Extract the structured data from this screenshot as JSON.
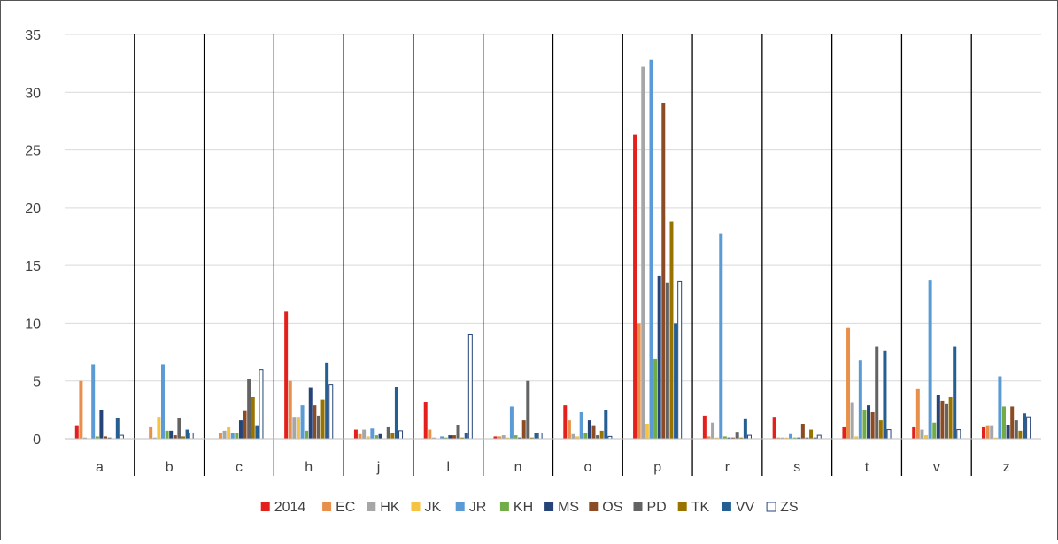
{
  "chart_data": {
    "type": "bar",
    "title": "",
    "xlabel": "",
    "ylabel": "",
    "ylim": [
      0,
      35
    ],
    "yticks": [
      0,
      5,
      10,
      15,
      20,
      25,
      30,
      35
    ],
    "grid": "horizontal",
    "category_separators": true,
    "legend_position": "bottom",
    "categories": [
      "a",
      "b",
      "c",
      "h",
      "j",
      "l",
      "n",
      "o",
      "p",
      "r",
      "s",
      "t",
      "v",
      "z"
    ],
    "series": [
      {
        "name": "2014",
        "color": "#e3201c",
        "values": [
          1.1,
          0.0,
          0.0,
          11.0,
          0.8,
          3.2,
          0.2,
          2.9,
          26.3,
          2.0,
          1.9,
          1.0,
          1.0,
          1.0
        ]
      },
      {
        "name": "EC",
        "color": "#e8904b",
        "values": [
          5.0,
          1.0,
          0.5,
          5.0,
          0.4,
          0.8,
          0.2,
          1.6,
          10.0,
          0.2,
          0.1,
          9.6,
          4.3,
          1.1
        ]
      },
      {
        "name": "HK",
        "color": "#a6a6a6",
        "values": [
          0.1,
          0.1,
          0.7,
          1.9,
          0.8,
          0.1,
          0.3,
          0.4,
          32.2,
          1.4,
          0.1,
          3.1,
          0.8,
          1.1
        ]
      },
      {
        "name": "JK",
        "color": "#f5c242",
        "values": [
          0.0,
          1.9,
          1.0,
          1.9,
          0.2,
          0.0,
          0.1,
          0.2,
          1.3,
          0.1,
          0.1,
          0.2,
          0.3,
          0.1
        ]
      },
      {
        "name": "JR",
        "color": "#5b9bd5",
        "values": [
          6.4,
          6.4,
          0.5,
          2.9,
          0.9,
          0.2,
          2.8,
          2.3,
          32.8,
          17.8,
          0.4,
          6.8,
          13.7,
          5.4
        ]
      },
      {
        "name": "KH",
        "color": "#70ad47",
        "values": [
          0.2,
          0.7,
          0.5,
          0.7,
          0.3,
          0.1,
          0.3,
          0.5,
          6.9,
          0.2,
          0.1,
          2.5,
          1.4,
          2.8
        ]
      },
      {
        "name": "MS",
        "color": "#264478",
        "values": [
          2.5,
          0.7,
          1.6,
          4.4,
          0.4,
          0.3,
          0.1,
          1.6,
          14.1,
          0.1,
          0.1,
          2.9,
          3.8,
          1.2
        ]
      },
      {
        "name": "OS",
        "color": "#8b4b24",
        "values": [
          0.2,
          0.3,
          2.4,
          2.9,
          0.0,
          0.3,
          1.6,
          1.1,
          29.1,
          0.1,
          1.3,
          2.3,
          3.3,
          2.8
        ]
      },
      {
        "name": "PD",
        "color": "#636363",
        "values": [
          0.1,
          1.8,
          5.2,
          2.0,
          1.0,
          1.2,
          5.0,
          0.3,
          13.5,
          0.6,
          0.1,
          8.0,
          3.0,
          1.6
        ]
      },
      {
        "name": "TK",
        "color": "#997300",
        "values": [
          0.0,
          0.2,
          3.6,
          3.4,
          0.5,
          0.1,
          0.1,
          0.7,
          18.8,
          0.1,
          0.8,
          1.6,
          3.6,
          0.7
        ]
      },
      {
        "name": "VV",
        "color": "#255e91",
        "values": [
          1.8,
          0.8,
          1.1,
          6.6,
          4.5,
          0.5,
          0.5,
          2.5,
          10.0,
          1.7,
          0.1,
          7.6,
          8.0,
          2.2
        ]
      },
      {
        "name": "ZS",
        "color": "#ffffff",
        "outline": "#264478",
        "values": [
          0.3,
          0.5,
          6.0,
          4.7,
          0.7,
          9.0,
          0.5,
          0.2,
          13.6,
          0.3,
          0.3,
          0.8,
          0.8,
          1.9
        ]
      }
    ]
  }
}
